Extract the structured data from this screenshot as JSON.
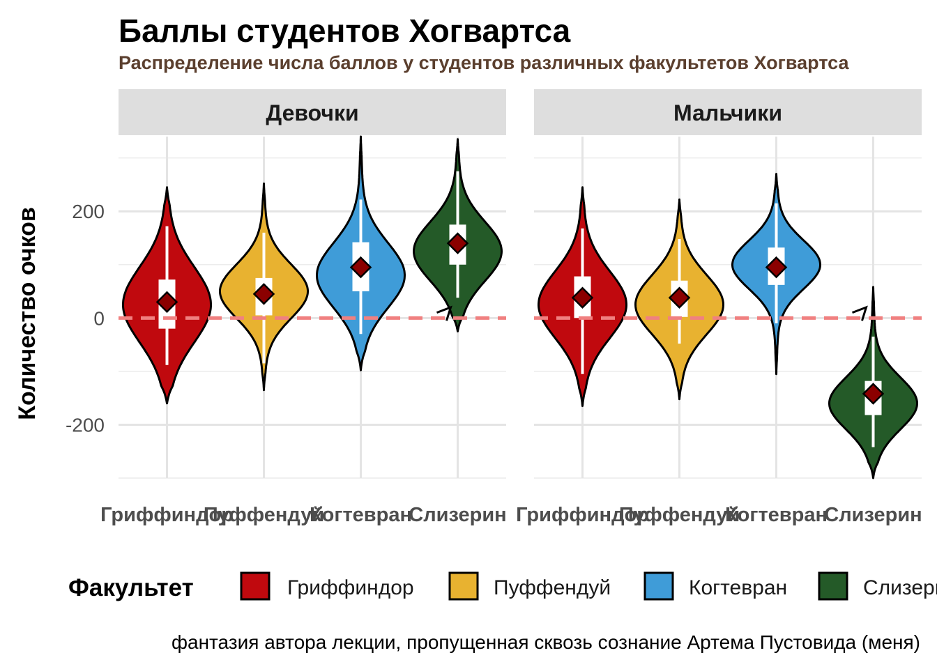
{
  "chart_data": {
    "type": "violin",
    "title": "Баллы студентов Хогвартса",
    "subtitle": "Распределение числа баллов у студентов различных факультетов Хогвартса",
    "ylabel": "Количество очков",
    "xlabel": "",
    "ylim": [
      -300,
      340
    ],
    "yticks": [
      -200,
      0,
      200
    ],
    "reference_line": {
      "y": 0,
      "color": "#f08080",
      "style": "dashed"
    },
    "categories": [
      "Гриффиндор",
      "Пуффендуй",
      "Когтевран",
      "Слизерин"
    ],
    "colors": {
      "Гриффиндор": "#c0090e",
      "Пуффендуй": "#e8b230",
      "Когтевран": "#3f9cd8",
      "Слизерин": "#245a28"
    },
    "legend": {
      "title": "Факультет",
      "position": "bottom"
    },
    "caption": "фантазия автора лекции, пропущенная сквозь сознание Артема Пустовида (меня)",
    "panels": [
      {
        "label": "Девочки",
        "groups": [
          {
            "name": "Гриффиндор",
            "mean": 30,
            "q1": -20,
            "q3": 72,
            "whisker_low": -88,
            "whisker_high": 172,
            "violin_min": -160,
            "violin_max": 245,
            "mode": 25,
            "spread": 70
          },
          {
            "name": "Пуффендуй",
            "mean": 45,
            "q1": 5,
            "q3": 75,
            "whisker_low": -85,
            "whisker_high": 160,
            "violin_min": -135,
            "violin_max": 252,
            "mode": 50,
            "spread": 50
          },
          {
            "name": "Когтевран",
            "mean": 95,
            "q1": 50,
            "q3": 142,
            "whisker_low": -30,
            "whisker_high": 222,
            "violin_min": -98,
            "violin_max": 340,
            "mode": 80,
            "spread": 60
          },
          {
            "name": "Слизерин",
            "mean": 140,
            "q1": 100,
            "q3": 175,
            "whisker_low": 38,
            "whisker_high": 275,
            "violin_min": -25,
            "violin_max": 335,
            "mode": 125,
            "spread": 55
          }
        ]
      },
      {
        "label": "Мальчики",
        "groups": [
          {
            "name": "Гриффиндор",
            "mean": 38,
            "q1": 0,
            "q3": 78,
            "whisker_low": -105,
            "whisker_high": 168,
            "violin_min": -165,
            "violin_max": 245,
            "mode": 25,
            "spread": 62
          },
          {
            "name": "Пуффендуй",
            "mean": 38,
            "q1": 2,
            "q3": 70,
            "whisker_low": -48,
            "whisker_high": 148,
            "violin_min": -152,
            "violin_max": 222,
            "mode": 25,
            "spread": 55
          },
          {
            "name": "Когтевран",
            "mean": 95,
            "q1": 62,
            "q3": 132,
            "whisker_low": -10,
            "whisker_high": 215,
            "violin_min": -105,
            "violin_max": 270,
            "mode": 100,
            "spread": 45
          },
          {
            "name": "Слизерин",
            "mean": -142,
            "q1": -182,
            "q3": -118,
            "whisker_low": -242,
            "whisker_high": -35,
            "violin_min": -300,
            "violin_max": 58,
            "mode": -160,
            "spread": 48
          }
        ]
      }
    ]
  }
}
